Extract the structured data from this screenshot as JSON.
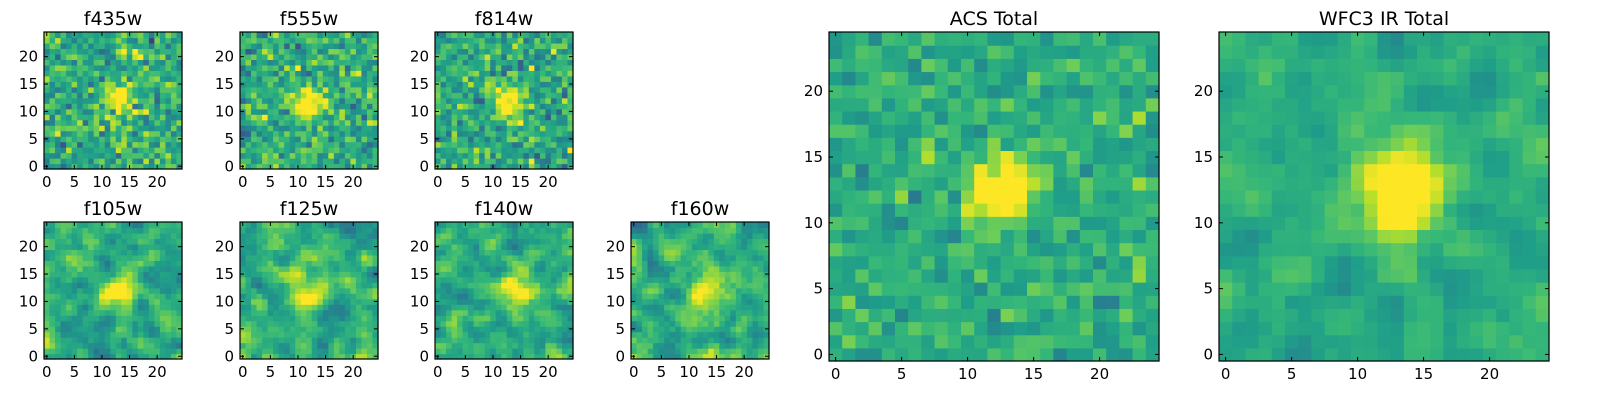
{
  "chart_data": [
    {
      "type": "heatmap",
      "title": "f435w",
      "colormap": "viridis",
      "grid": false,
      "shape": [
        25,
        25
      ],
      "xlim": [
        -0.5,
        24.5
      ],
      "ylim": [
        -0.5,
        24.5
      ],
      "xticks": [
        0,
        5,
        10,
        15,
        20
      ],
      "yticks": [
        0,
        5,
        10,
        15,
        20
      ],
      "seed": 11,
      "source": {
        "center": [
          13,
          12.5
        ],
        "sigma": 1.8,
        "amp": 0.5
      },
      "noise": 0.28,
      "smooth": 0
    },
    {
      "type": "heatmap",
      "title": "f555w",
      "colormap": "viridis",
      "grid": false,
      "shape": [
        25,
        25
      ],
      "xlim": [
        -0.5,
        24.5
      ],
      "ylim": [
        -0.5,
        24.5
      ],
      "xticks": [
        0,
        5,
        10,
        15,
        20
      ],
      "yticks": [
        0,
        5,
        10,
        15,
        20
      ],
      "seed": 23,
      "source": {
        "center": [
          12,
          11.5
        ],
        "sigma": 1.8,
        "amp": 0.5
      },
      "noise": 0.28,
      "smooth": 0
    },
    {
      "type": "heatmap",
      "title": "f814w",
      "colormap": "viridis",
      "grid": false,
      "shape": [
        25,
        25
      ],
      "xlim": [
        -0.5,
        24.5
      ],
      "ylim": [
        -0.5,
        24.5
      ],
      "xticks": [
        0,
        5,
        10,
        15,
        20
      ],
      "yticks": [
        0,
        5,
        10,
        15,
        20
      ],
      "seed": 37,
      "source": {
        "center": [
          13,
          12
        ],
        "sigma": 1.8,
        "amp": 0.55
      },
      "noise": 0.28,
      "smooth": 0
    },
    {
      "type": "heatmap",
      "title": "f105w",
      "colormap": "viridis",
      "grid": false,
      "shape": [
        25,
        25
      ],
      "xlim": [
        -0.5,
        24.5
      ],
      "ylim": [
        -0.5,
        24.5
      ],
      "xticks": [
        0,
        5,
        10,
        15,
        20
      ],
      "yticks": [
        0,
        5,
        10,
        15,
        20
      ],
      "seed": 41,
      "source": {
        "center": [
          13,
          12
        ],
        "sigma": 2.2,
        "amp": 0.45
      },
      "noise": 0.32,
      "smooth": 1
    },
    {
      "type": "heatmap",
      "title": "f125w",
      "colormap": "viridis",
      "grid": false,
      "shape": [
        25,
        25
      ],
      "xlim": [
        -0.5,
        24.5
      ],
      "ylim": [
        -0.5,
        24.5
      ],
      "xticks": [
        0,
        5,
        10,
        15,
        20
      ],
      "yticks": [
        0,
        5,
        10,
        15,
        20
      ],
      "seed": 53,
      "source": {
        "center": [
          12,
          11
        ],
        "sigma": 2.2,
        "amp": 0.45
      },
      "noise": 0.32,
      "smooth": 1
    },
    {
      "type": "heatmap",
      "title": "f140w",
      "colormap": "viridis",
      "grid": false,
      "shape": [
        25,
        25
      ],
      "xlim": [
        -0.5,
        24.5
      ],
      "ylim": [
        -0.5,
        24.5
      ],
      "xticks": [
        0,
        5,
        10,
        15,
        20
      ],
      "yticks": [
        0,
        5,
        10,
        15,
        20
      ],
      "seed": 67,
      "source": {
        "center": [
          14,
          12
        ],
        "sigma": 2.2,
        "amp": 0.45
      },
      "noise": 0.32,
      "smooth": 1
    },
    {
      "type": "heatmap",
      "title": "f160w",
      "colormap": "viridis",
      "grid": false,
      "shape": [
        25,
        25
      ],
      "xlim": [
        -0.5,
        24.5
      ],
      "ylim": [
        -0.5,
        24.5
      ],
      "xticks": [
        0,
        5,
        10,
        15,
        20
      ],
      "yticks": [
        0,
        5,
        10,
        15,
        20
      ],
      "seed": 79,
      "source": {
        "center": [
          13,
          12
        ],
        "sigma": 2.4,
        "amp": 0.45
      },
      "noise": 0.32,
      "smooth": 1
    },
    {
      "type": "heatmap",
      "title": "ACS Total",
      "colormap": "viridis",
      "grid": false,
      "shape": [
        25,
        25
      ],
      "xlim": [
        -0.5,
        24.5
      ],
      "ylim": [
        -0.5,
        24.5
      ],
      "xticks": [
        0,
        5,
        10,
        15,
        20
      ],
      "yticks": [
        0,
        5,
        10,
        15,
        20
      ],
      "seed": 97,
      "source": {
        "center": [
          12.5,
          12.5
        ],
        "sigma": 1.7,
        "amp": 0.65
      },
      "noise": 0.18,
      "smooth": 0
    },
    {
      "type": "heatmap",
      "title": "WFC3 IR Total",
      "colormap": "viridis",
      "grid": false,
      "shape": [
        25,
        25
      ],
      "xlim": [
        -0.5,
        24.5
      ],
      "ylim": [
        -0.5,
        24.5
      ],
      "xticks": [
        0,
        5,
        10,
        15,
        20
      ],
      "yticks": [
        0,
        5,
        10,
        15,
        20
      ],
      "seed": 113,
      "source": {
        "center": [
          13,
          12.5
        ],
        "sigma": 2.3,
        "amp": 0.6
      },
      "noise": 0.2,
      "smooth": 1
    }
  ]
}
